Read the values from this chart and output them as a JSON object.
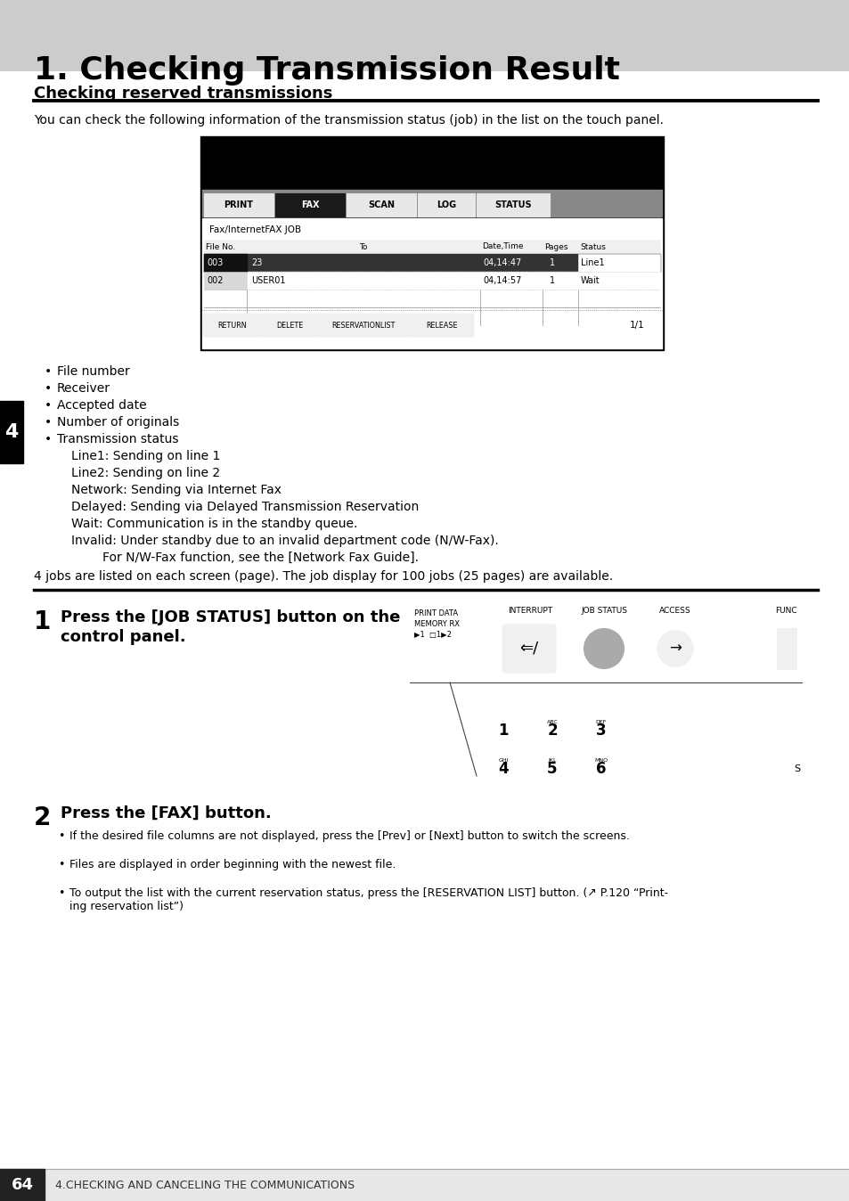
{
  "page_bg": "#ffffff",
  "header_bg": "#cccccc",
  "header_title": "1. Checking Transmission Result",
  "section_title": "Checking reserved transmissions",
  "intro_text": "You can check the following information of the transmission status (job) in the list on the touch panel.",
  "bullet_items": [
    "File number",
    "Receiver",
    "Accepted date",
    "Number of originals",
    "Transmission status"
  ],
  "status_lines": [
    "Line1: Sending on line 1",
    "Line2: Sending on line 2",
    "Network: Sending via Internet Fax",
    "Delayed: Sending via Delayed Transmission Reservation",
    "Wait: Communication is in the standby queue.",
    "Invalid: Under standby due to an invalid department code (N/W-Fax).",
    "        For N/W-Fax function, see the [Network Fax Guide]."
  ],
  "footer_note": "4 jobs are listed on each screen (page). The job display for 100 jobs (25 pages) are available.",
  "step2_text": "Press the [FAX] button.",
  "step2_bullets": [
    "If the desired file columns are not displayed, press the [Prev] or [Next] button to switch the screens.",
    "Files are displayed in order beginning with the newest file.",
    "To output the list with the current reservation status, press the [RESERVATION LIST] button. (↗ P.120 “Print-\ning reservation list”)"
  ],
  "page_number": "64",
  "footer_text": "4.CHECKING AND CANCELING THE COMMUNICATIONS"
}
